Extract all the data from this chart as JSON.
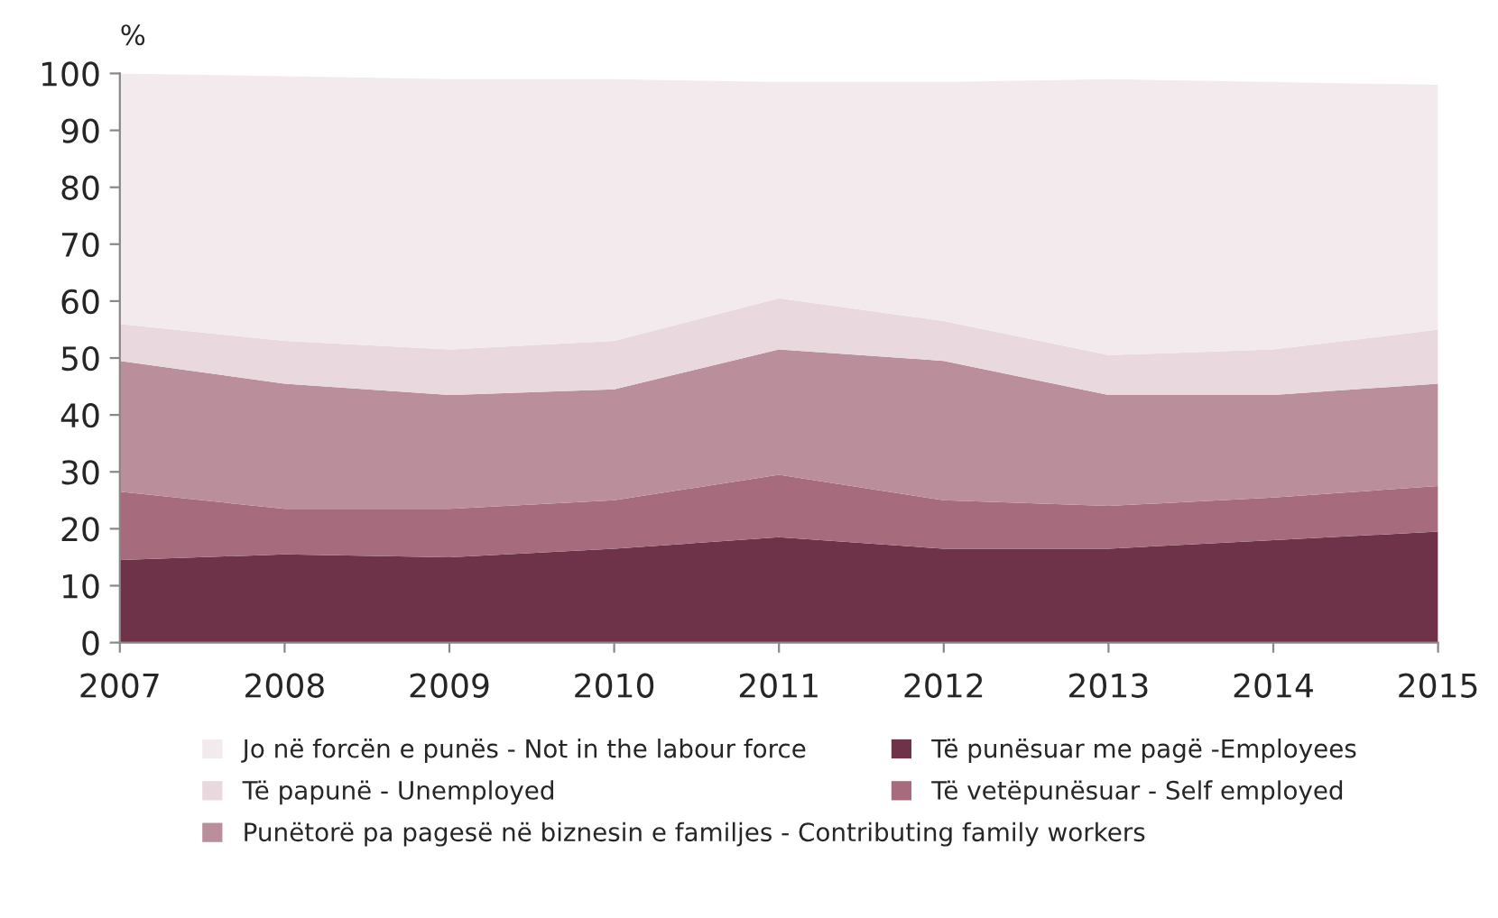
{
  "chart_data": {
    "type": "area",
    "stacked": true,
    "ylabel": "%",
    "x": [
      2007,
      2008,
      2009,
      2010,
      2011,
      2012,
      2013,
      2014,
      2015
    ],
    "xlim": [
      2007,
      2015
    ],
    "xticks": [
      2007,
      2008,
      2009,
      2010,
      2011,
      2012,
      2013,
      2014,
      2015
    ],
    "ylim": [
      0,
      100
    ],
    "yticks": [
      0,
      10,
      20,
      30,
      40,
      50,
      60,
      70,
      80,
      90,
      100
    ],
    "grid": false,
    "legend": "bottom",
    "series": [
      {
        "name": "Të punësuar me pagë -Employees",
        "color": "#6f3349",
        "values": [
          14.5,
          15.5,
          15,
          16.5,
          18.5,
          16.5,
          16.5,
          18,
          19.5
        ]
      },
      {
        "name": "Të vetëpunësuar - Self employed",
        "color": "#a66b7d",
        "values": [
          12,
          8,
          8.5,
          8.5,
          11,
          8.5,
          7.5,
          7.5,
          8
        ]
      },
      {
        "name": "Punëtorë pa pagesë në biznesin e familjes - Contributing family workers",
        "color": "#bb8e9b",
        "values": [
          23,
          22,
          20,
          19.5,
          22,
          24.5,
          19.5,
          18,
          18
        ]
      },
      {
        "name": "Të papunë - Unemployed",
        "color": "#e9d9df",
        "values": [
          6.5,
          7.5,
          8,
          8.5,
          9,
          7,
          7,
          8,
          9.5
        ]
      },
      {
        "name": "Jo në forcën e punës - Not in the labour force",
        "color": "#f2eaed",
        "values": [
          44,
          46.5,
          47.5,
          46,
          38,
          42,
          48.5,
          47,
          43
        ]
      }
    ]
  }
}
